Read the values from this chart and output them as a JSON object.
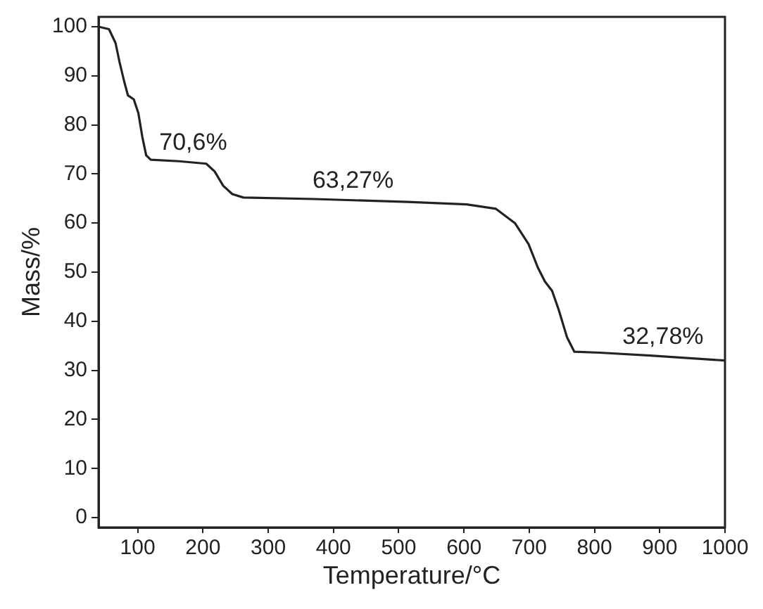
{
  "chart_data": {
    "type": "line",
    "xlabel": "Temperature/°C",
    "ylabel": "Mass/%",
    "x": [
      40,
      56,
      66,
      72,
      79,
      85,
      94,
      101,
      107,
      113,
      120,
      163,
      205,
      218,
      231,
      245,
      262,
      370,
      514,
      604,
      649,
      678,
      699,
      713,
      724,
      735,
      745,
      758,
      769,
      808,
      886,
      1000
    ],
    "series": [
      {
        "color": "#222222",
        "values": [
          100,
          99.5,
          96.7,
          92.9,
          89,
          86,
          85.2,
          82.4,
          77.6,
          73.8,
          72.9,
          72.6,
          72.1,
          70.5,
          67.6,
          65.9,
          65.2,
          64.9,
          64.3,
          63.8,
          62.9,
          60,
          55.7,
          51,
          48.1,
          46.2,
          42.4,
          36.7,
          33.8,
          33.6,
          33,
          32
        ]
      }
    ],
    "xlim": [
      40,
      1000
    ],
    "xticks": [
      100,
      200,
      300,
      400,
      500,
      600,
      700,
      800,
      900,
      1000
    ],
    "ylim": [
      -2,
      102
    ],
    "yticks": [
      0,
      10,
      20,
      30,
      40,
      50,
      60,
      70,
      80,
      90,
      100
    ],
    "marker": "none",
    "annotations": [
      {
        "text": "70,6%",
        "x": 185,
        "y": 72.4
      },
      {
        "text": "63,27%",
        "x": 430,
        "y": 64.6
      },
      {
        "text": "32,78%",
        "x": 905,
        "y": 32.9
      }
    ]
  }
}
